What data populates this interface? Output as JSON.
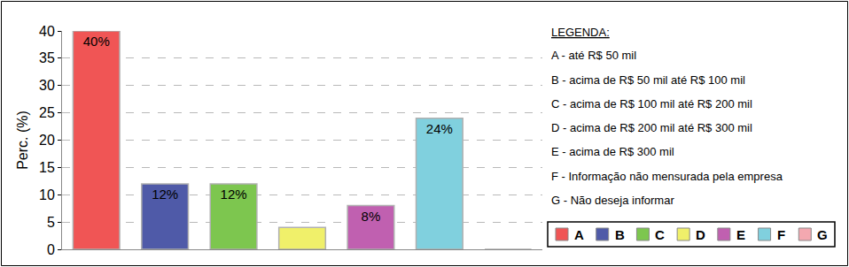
{
  "chart_data": {
    "type": "bar",
    "categories": [
      "A",
      "B",
      "C",
      "D",
      "E",
      "F",
      "G"
    ],
    "values": [
      40,
      12,
      12,
      4,
      8,
      24,
      0
    ],
    "value_labels": [
      "40%",
      "12%",
      "12%",
      null,
      "8%",
      "24%",
      null
    ],
    "colors": [
      "#f05555",
      "#4f5aa8",
      "#7dc64f",
      "#f0f06a",
      "#c060b0",
      "#80d0de",
      "#f4a8b0"
    ],
    "y_label": "Perc. (%)",
    "ylim": [
      0,
      40
    ],
    "yticks": [
      0,
      5,
      10,
      15,
      20,
      25,
      30,
      35,
      40
    ],
    "grid": true,
    "data_labels": true,
    "tick_labels": "y",
    "legend": "right",
    "legend_title": "LEGENDA:",
    "category_descriptions": [
      "A - até R$ 50 mil",
      "B - acima de R$ 50 mil até R$ 100 mil",
      "C - acima de R$ 100 mil até R$ 200 mil",
      "D - acima de R$ 200 mil até R$ 300 mil",
      "E - acima de R$ 300 mil",
      "F - Informação não mensurada pela empresa",
      "G - Não deseja informar"
    ]
  }
}
